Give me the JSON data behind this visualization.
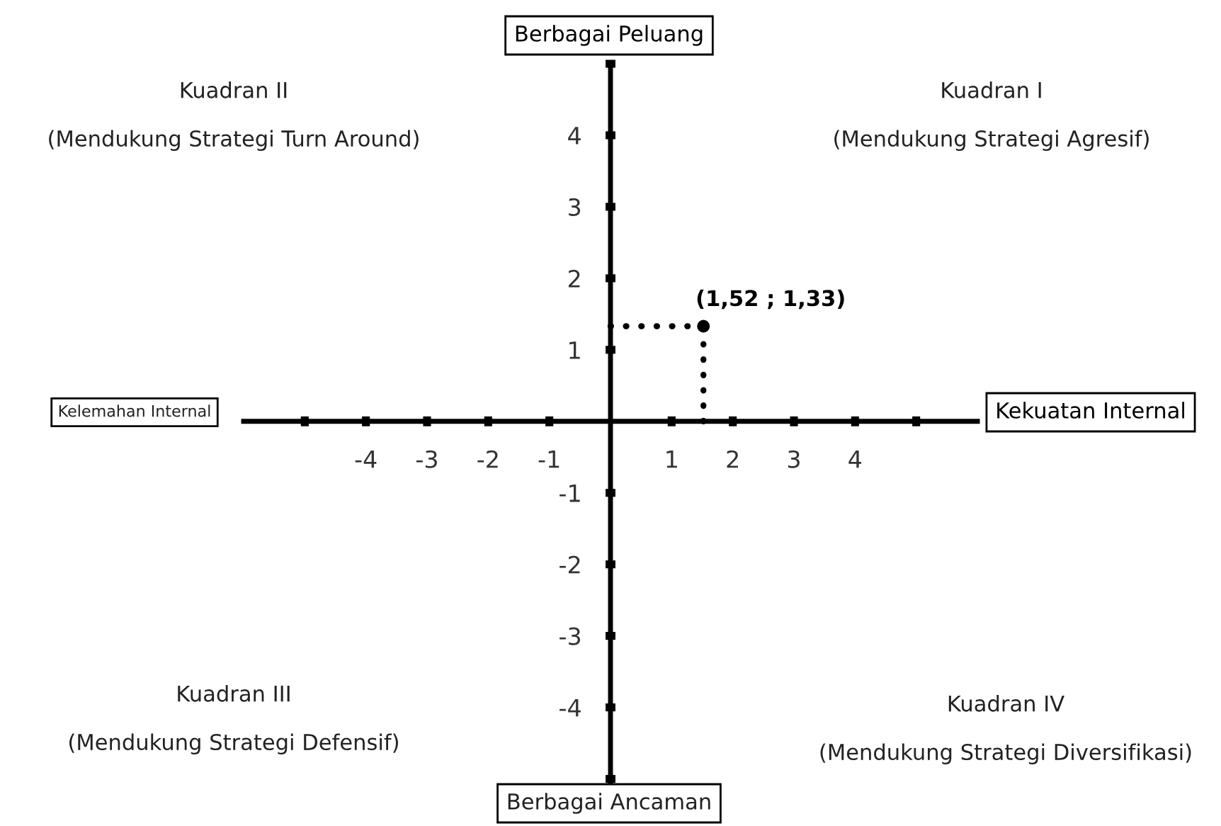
{
  "chart_data": {
    "type": "scatter",
    "xlabel": "Kekuatan Internal",
    "ylabel": "Berbagai Peluang",
    "x": [
      1.52
    ],
    "values": [
      1.33
    ],
    "value_labels": [
      "(1,52 ; 1,33)"
    ],
    "color": "#000000",
    "marker": "circle",
    "line_style": "dotted",
    "xlim": [
      -6,
      6
    ],
    "ylim": [
      -5.5,
      5
    ],
    "xticks": [
      {
        "value": -5,
        "label": null
      },
      -4,
      -3,
      -2,
      -1,
      1,
      2,
      3,
      4,
      {
        "value": 5,
        "label": null
      }
    ],
    "yticks": [
      {
        "value": -5,
        "label": null
      },
      -4,
      -3,
      -2,
      -1,
      1,
      2,
      3,
      4,
      {
        "value": 5,
        "label": null
      }
    ],
    "grid": false,
    "annotations": [
      "Kelemahan Internal",
      "Berbagai Ancaman",
      "Kuadran I\n\n(Mendukung Strategi Agresif)",
      "Kuadran II\n\n(Mendukung Strategi Turn Around)",
      "Kuadran III\n\n(Mendukung Strategi Defensif)",
      "Kuadran IV\n\n(Mendukung Strategi Diversifikasi)"
    ]
  }
}
